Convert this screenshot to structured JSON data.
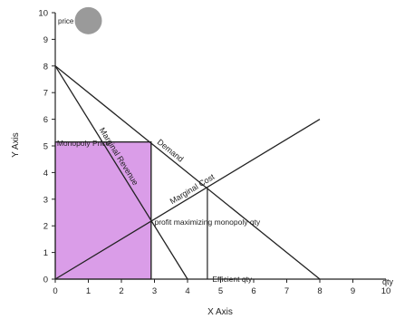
{
  "chart_data": {
    "type": "line",
    "xlabel": "X Axis",
    "ylabel": "Y Axis",
    "xlim": [
      0,
      10
    ],
    "ylim": [
      0,
      10
    ],
    "xticks": [
      "0",
      "1",
      "2",
      "3",
      "4",
      "5",
      "6",
      "7",
      "8",
      "9",
      "10"
    ],
    "yticks": [
      "0",
      "1",
      "2",
      "3",
      "4",
      "5",
      "6",
      "7",
      "8",
      "9",
      "10"
    ],
    "corner_label": "qty",
    "series": [
      {
        "name": "Demand",
        "label_text": "Demand",
        "color": "#222222",
        "points": [
          [
            0,
            8
          ],
          [
            8,
            0
          ]
        ]
      },
      {
        "name": "Marginal Revenue",
        "label_text": "Marginal Revenue",
        "color": "#222222",
        "points": [
          [
            0,
            8
          ],
          [
            4,
            0
          ]
        ]
      },
      {
        "name": "Marginal Cost",
        "label_text": "Marginal Cost",
        "color": "#222222",
        "points": [
          [
            0,
            0
          ],
          [
            8,
            6
          ]
        ]
      }
    ],
    "shaded_region": {
      "x": [
        0,
        2.9
      ],
      "y": [
        0,
        5.15
      ],
      "color": "#da9de8"
    },
    "annotations": [
      {
        "name": "monopoly-price-label",
        "text": "Monopoly Price",
        "x": 0.05,
        "y": 5.1
      },
      {
        "name": "profit-max-label",
        "text": "profit maximizing monopoly qty",
        "x": 3.0,
        "y": 2.15
      },
      {
        "name": "efficient-qty-label",
        "text": "Efficient qty",
        "x": 4.75,
        "y": 0.0
      }
    ],
    "guides": [
      {
        "name": "monopoly-price-line",
        "from": [
          0,
          5.15
        ],
        "to": [
          2.9,
          5.15
        ]
      },
      {
        "name": "monopoly-qty-line",
        "from": [
          2.9,
          0
        ],
        "to": [
          2.9,
          5.15
        ]
      },
      {
        "name": "efficient-qty-line",
        "from": [
          4.6,
          0
        ],
        "to": [
          4.6,
          3.45
        ]
      }
    ],
    "marker": {
      "label": "price",
      "x": 1.0,
      "y": 9.7,
      "color": "#9a9a9a"
    },
    "grid": false
  }
}
